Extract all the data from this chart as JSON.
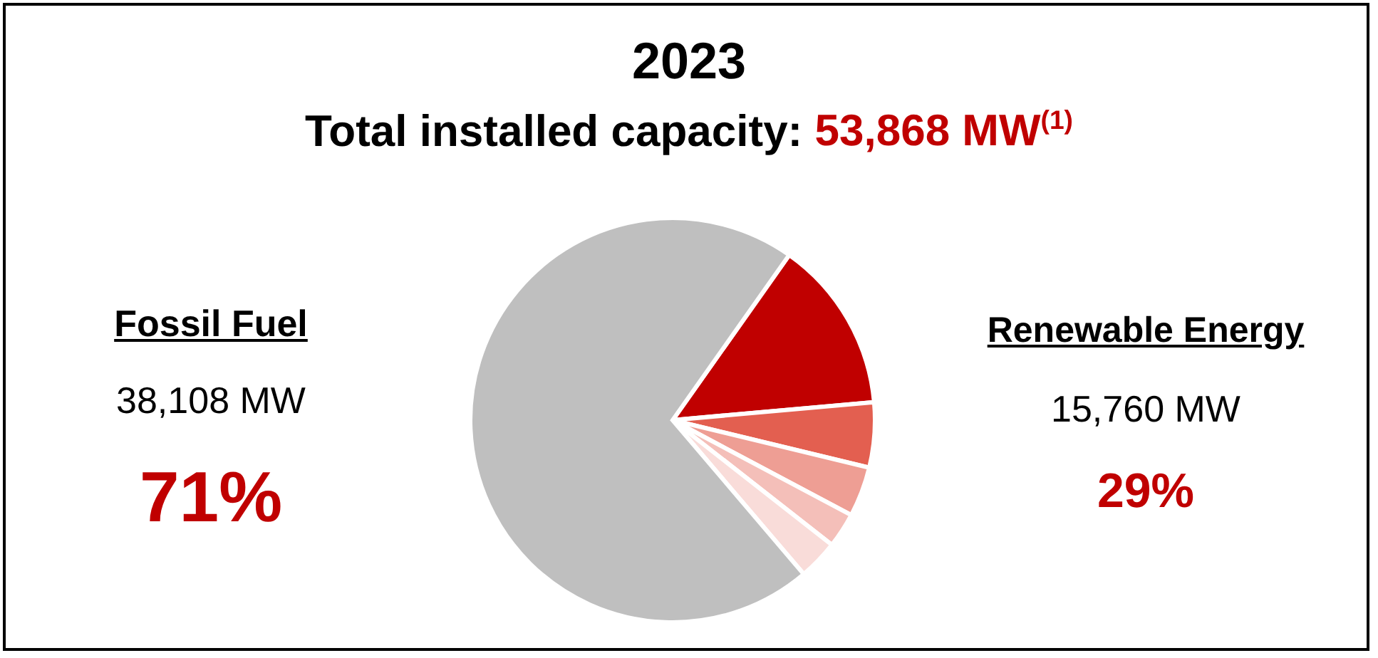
{
  "chart_data": {
    "type": "pie",
    "title": "2023",
    "subtitle": "Total installed capacity: 53,868 MW$^{(1)}$",
    "categories": [
      null,
      null,
      null,
      null,
      null,
      null
    ],
    "values": [
      13.8,
      5.2,
      4.0,
      2.8,
      3.2,
      71.0
    ],
    "colors": [
      "#c00000",
      "#e35f50",
      "#ee9e94",
      "#f4bfb9",
      "#f9dcd9",
      "#bfbfbf"
    ],
    "annotations": [
      "Fossil Fuel",
      "38,108 MW",
      "71%",
      "Renewable Energy",
      "15,760 MW",
      "29%"
    ]
  }
}
